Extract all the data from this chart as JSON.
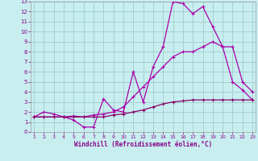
{
  "xlabel": "Windchill (Refroidissement éolien,°C)",
  "bg_color": "#c8eef0",
  "grid_color": "#a0cccc",
  "line_color": "#aa00aa",
  "x_min": 1,
  "x_max": 23,
  "y_min": 0,
  "y_max": 13,
  "x_ticks": [
    1,
    2,
    3,
    4,
    5,
    6,
    7,
    8,
    9,
    10,
    11,
    12,
    13,
    14,
    15,
    16,
    17,
    18,
    19,
    20,
    21,
    22,
    23
  ],
  "y_ticks": [
    0,
    1,
    2,
    3,
    4,
    5,
    6,
    7,
    8,
    9,
    10,
    11,
    12,
    13
  ],
  "line1_x": [
    1,
    2,
    3,
    4,
    5,
    6,
    7,
    8,
    9,
    10,
    11,
    12,
    13,
    14,
    15,
    16,
    17,
    18,
    19,
    20,
    21,
    22,
    23
  ],
  "line1_y": [
    1.5,
    2.0,
    1.8,
    1.5,
    1.2,
    0.5,
    0.5,
    3.3,
    2.2,
    2.0,
    6.0,
    3.0,
    6.5,
    8.5,
    13.0,
    12.8,
    11.8,
    12.5,
    10.5,
    8.5,
    5.0,
    4.2,
    3.2
  ],
  "line2_x": [
    1,
    2,
    3,
    4,
    5,
    6,
    7,
    8,
    9,
    10,
    11,
    12,
    13,
    14,
    15,
    16,
    17,
    18,
    19,
    20,
    21,
    22,
    23
  ],
  "line2_y": [
    1.5,
    1.5,
    1.5,
    1.5,
    1.6,
    1.5,
    1.7,
    1.8,
    2.0,
    2.5,
    3.5,
    4.5,
    5.5,
    6.5,
    7.5,
    8.0,
    8.0,
    8.5,
    9.0,
    8.5,
    8.5,
    5.0,
    4.0
  ],
  "line3_x": [
    1,
    2,
    3,
    4,
    5,
    6,
    7,
    8,
    9,
    10,
    11,
    12,
    13,
    14,
    15,
    16,
    17,
    18,
    19,
    20,
    21,
    22,
    23
  ],
  "line3_y": [
    1.5,
    1.5,
    1.5,
    1.5,
    1.5,
    1.5,
    1.5,
    1.5,
    1.7,
    1.8,
    2.0,
    2.2,
    2.5,
    2.8,
    3.0,
    3.1,
    3.2,
    3.2,
    3.2,
    3.2,
    3.2,
    3.2,
    3.2
  ]
}
